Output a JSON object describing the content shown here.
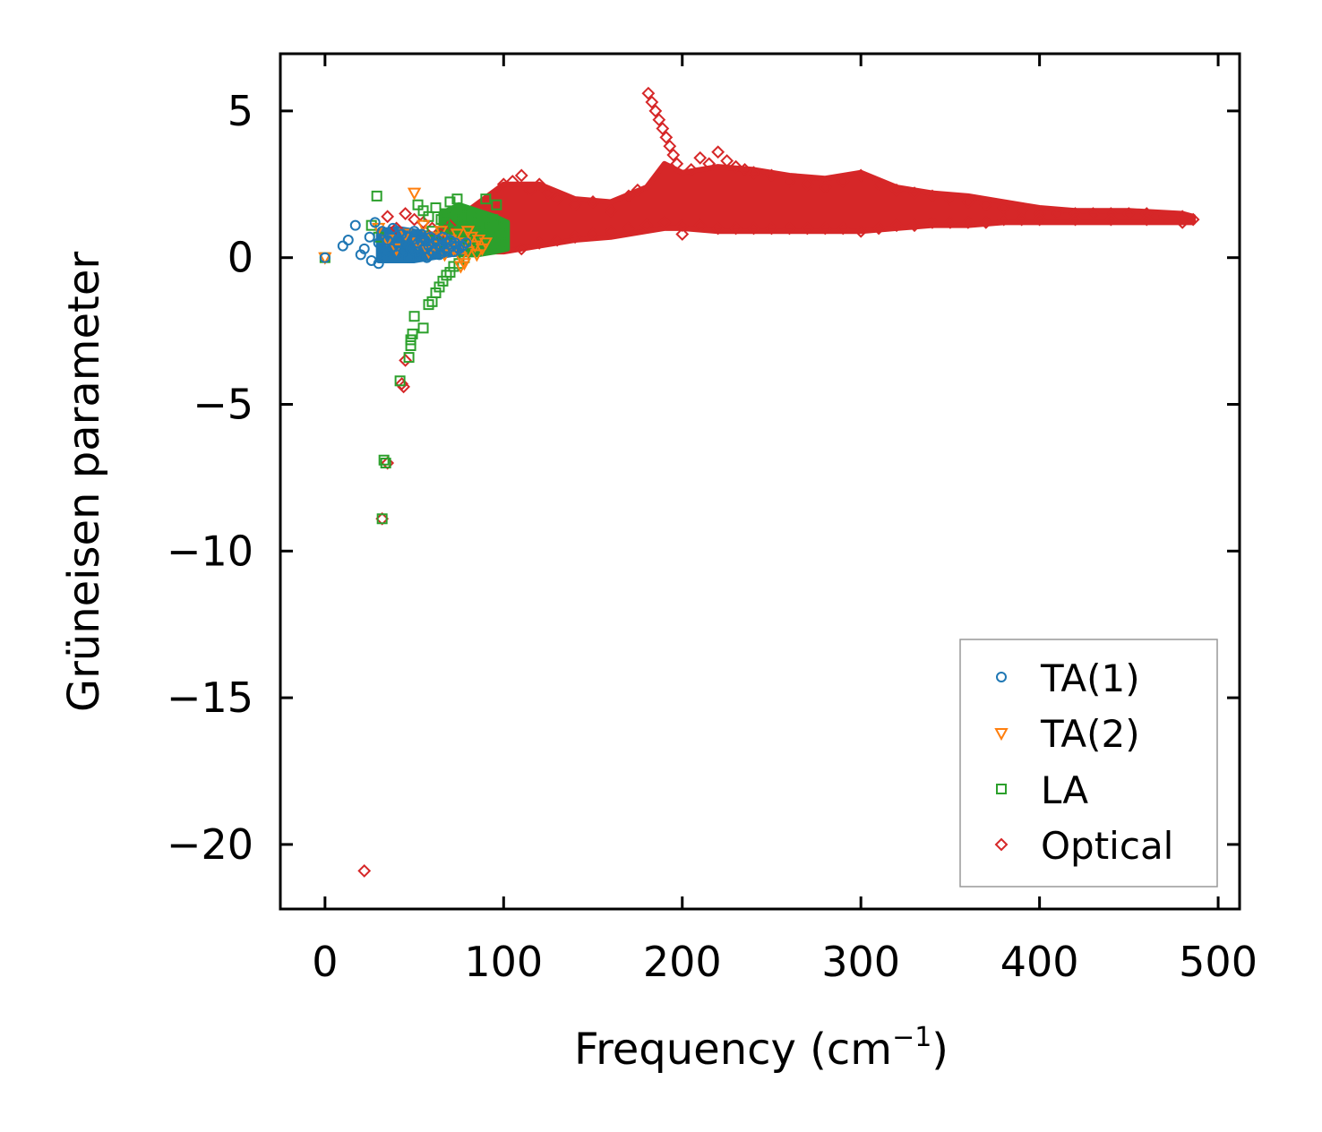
{
  "chart_data": {
    "type": "scatter",
    "title": "",
    "xlabel": "Frequency (cm",
    "xlabel_sup": "−1",
    "xlabel_end": ")",
    "ylabel": "Grüneisen parameter",
    "xlim": [
      -25,
      512
    ],
    "ylim": [
      -22.2,
      6.95
    ],
    "xticks": [
      0,
      100,
      200,
      300,
      400,
      500
    ],
    "yticks": [
      5,
      0,
      -5,
      -10,
      -15,
      -20
    ],
    "xtick_labels": [
      "0",
      "100",
      "200",
      "300",
      "400",
      "500"
    ],
    "ytick_labels": [
      "5",
      "0",
      "−5",
      "−10",
      "−15",
      "−20"
    ],
    "grid": false,
    "legend_position": "bottom-right",
    "series": [
      {
        "name": "TA(1)",
        "marker": "circle",
        "color": "#1f77b4",
        "points": [
          [
            0,
            0
          ],
          [
            10,
            0.4
          ],
          [
            13,
            0.6
          ],
          [
            17,
            1.1
          ],
          [
            20,
            0.1
          ],
          [
            22,
            0.3
          ],
          [
            25,
            0.7
          ],
          [
            26,
            -0.1
          ],
          [
            28,
            1.2
          ],
          [
            30,
            0.5
          ],
          [
            30,
            -0.2
          ],
          [
            32,
            0.9
          ],
          [
            34,
            0.2
          ],
          [
            35,
            0.6
          ],
          [
            37,
            0.3
          ],
          [
            38,
            1.0
          ],
          [
            40,
            0.1
          ],
          [
            41,
            0.5
          ],
          [
            43,
            0.8
          ],
          [
            44,
            0.2
          ],
          [
            45,
            0.4
          ],
          [
            46,
            0.7
          ],
          [
            47,
            0.0
          ],
          [
            48,
            0.3
          ],
          [
            49,
            0.6
          ],
          [
            50,
            0.9
          ],
          [
            51,
            0.2
          ],
          [
            52,
            0.5
          ],
          [
            53,
            0.1
          ],
          [
            54,
            0.8
          ],
          [
            55,
            0.3
          ],
          [
            56,
            0.6
          ],
          [
            57,
            0.0
          ],
          [
            58,
            0.4
          ],
          [
            59,
            0.7
          ],
          [
            60,
            0.2
          ],
          [
            61,
            0.5
          ],
          [
            62,
            0.3
          ],
          [
            63,
            0.6
          ],
          [
            64,
            0.1
          ],
          [
            65,
            0.4
          ],
          [
            66,
            0.7
          ],
          [
            67,
            0.2
          ],
          [
            68,
            0.5
          ],
          [
            69,
            0.3
          ],
          [
            70,
            0.6
          ],
          [
            71,
            0.4
          ],
          [
            72,
            0.2
          ],
          [
            73,
            0.5
          ],
          [
            75,
            0.3
          ],
          [
            77,
            0.4
          ],
          [
            79,
            0.5
          ]
        ]
      },
      {
        "name": "TA(2)",
        "marker": "triangle-down",
        "color": "#ff7f0e",
        "points": [
          [
            0,
            0
          ],
          [
            30,
            1.0
          ],
          [
            35,
            0.6
          ],
          [
            40,
            0.3
          ],
          [
            45,
            0.8
          ],
          [
            50,
            2.2
          ],
          [
            52,
            0.5
          ],
          [
            55,
            1.1
          ],
          [
            58,
            0.2
          ],
          [
            60,
            0.7
          ],
          [
            62,
            0.4
          ],
          [
            65,
            0.9
          ],
          [
            67,
            0.1
          ],
          [
            70,
            0.6
          ],
          [
            72,
            0.3
          ],
          [
            74,
            0.8
          ],
          [
            76,
            0.0
          ],
          [
            78,
            0.5
          ],
          [
            80,
            0.2
          ],
          [
            82,
            0.7
          ],
          [
            84,
            0.4
          ],
          [
            86,
            0.6
          ],
          [
            88,
            0.3
          ],
          [
            90,
            0.5
          ],
          [
            78,
            -0.2
          ],
          [
            76,
            -0.3
          ],
          [
            80,
            0.9
          ],
          [
            85,
            0.1
          ]
        ]
      },
      {
        "name": "LA",
        "marker": "square",
        "color": "#2ca02c",
        "points": [
          [
            0,
            0
          ],
          [
            29,
            2.1
          ],
          [
            26,
            1.1
          ],
          [
            30,
            0.7
          ],
          [
            32,
            -8.9
          ],
          [
            33,
            -6.9
          ],
          [
            34,
            -7.0
          ],
          [
            42,
            -4.2
          ],
          [
            47,
            -3.4
          ],
          [
            48,
            -3.0
          ],
          [
            48,
            -2.8
          ],
          [
            49,
            -2.6
          ],
          [
            50,
            -2.0
          ],
          [
            55,
            -2.4
          ],
          [
            58,
            -1.6
          ],
          [
            60,
            -1.5
          ],
          [
            62,
            -1.2
          ],
          [
            64,
            -1.0
          ],
          [
            66,
            -0.8
          ],
          [
            68,
            -0.6
          ],
          [
            70,
            -0.5
          ],
          [
            72,
            -0.3
          ],
          [
            75,
            -0.2
          ],
          [
            78,
            0.0
          ],
          [
            52,
            1.8
          ],
          [
            55,
            1.6
          ],
          [
            58,
            1.4
          ],
          [
            62,
            1.7
          ],
          [
            65,
            1.3
          ],
          [
            68,
            1.5
          ],
          [
            70,
            1.9
          ],
          [
            72,
            1.2
          ],
          [
            74,
            2.0
          ],
          [
            75,
            1.6
          ],
          [
            77,
            1.4
          ],
          [
            80,
            1.1
          ],
          [
            82,
            1.5
          ],
          [
            84,
            0.9
          ],
          [
            86,
            1.2
          ],
          [
            88,
            0.8
          ],
          [
            90,
            2.0
          ],
          [
            92,
            1.0
          ],
          [
            94,
            1.3
          ],
          [
            96,
            1.8
          ],
          [
            98,
            0.7
          ],
          [
            100,
            1.1
          ],
          [
            60,
            0.9
          ],
          [
            65,
            0.5
          ],
          [
            70,
            0.8
          ],
          [
            75,
            0.6
          ],
          [
            80,
            0.4
          ],
          [
            85,
            0.7
          ],
          [
            90,
            0.3
          ],
          [
            95,
            0.6
          ],
          [
            100,
            0.5
          ]
        ]
      },
      {
        "name": "Optical",
        "marker": "diamond",
        "color": "#d62728",
        "points": [
          [
            22,
            -20.9
          ],
          [
            32,
            -8.9
          ],
          [
            35,
            -7.0
          ],
          [
            43,
            -4.3
          ],
          [
            44,
            -4.4
          ],
          [
            45,
            -3.5
          ],
          [
            35,
            1.4
          ],
          [
            40,
            1.0
          ],
          [
            45,
            1.5
          ],
          [
            50,
            1.3
          ],
          [
            55,
            1.2
          ],
          [
            60,
            1.0
          ],
          [
            65,
            0.8
          ],
          [
            70,
            1.1
          ],
          [
            100,
            2.5
          ],
          [
            105,
            2.6
          ],
          [
            110,
            2.8
          ],
          [
            115,
            2.3
          ],
          [
            120,
            2.5
          ],
          [
            125,
            2.2
          ],
          [
            130,
            2.0
          ],
          [
            140,
            1.8
          ],
          [
            150,
            1.9
          ],
          [
            160,
            1.6
          ],
          [
            170,
            2.1
          ],
          [
            175,
            2.3
          ],
          [
            181,
            5.6
          ],
          [
            183,
            5.3
          ],
          [
            185,
            5.0
          ],
          [
            187,
            4.7
          ],
          [
            189,
            4.4
          ],
          [
            191,
            4.1
          ],
          [
            193,
            3.8
          ],
          [
            195,
            3.5
          ],
          [
            197,
            3.2
          ],
          [
            200,
            0.8
          ],
          [
            205,
            3.0
          ],
          [
            210,
            3.4
          ],
          [
            215,
            3.2
          ],
          [
            220,
            3.6
          ],
          [
            225,
            3.3
          ],
          [
            230,
            3.1
          ],
          [
            235,
            3.0
          ],
          [
            240,
            2.9
          ],
          [
            250,
            2.8
          ],
          [
            260,
            2.6
          ],
          [
            270,
            2.5
          ],
          [
            280,
            2.4
          ],
          [
            290,
            2.6
          ],
          [
            300,
            2.8
          ],
          [
            310,
            2.5
          ],
          [
            320,
            2.3
          ],
          [
            330,
            2.2
          ],
          [
            340,
            2.1
          ],
          [
            350,
            2.0
          ],
          [
            360,
            1.9
          ],
          [
            370,
            1.8
          ],
          [
            380,
            1.7
          ],
          [
            390,
            1.6
          ],
          [
            400,
            1.5
          ],
          [
            410,
            1.5
          ],
          [
            420,
            1.5
          ],
          [
            430,
            1.5
          ],
          [
            440,
            1.5
          ],
          [
            450,
            1.5
          ],
          [
            460,
            1.5
          ],
          [
            470,
            1.4
          ],
          [
            480,
            1.4
          ],
          [
            486,
            1.3
          ],
          [
            110,
            0.3
          ],
          [
            120,
            0.5
          ],
          [
            130,
            0.6
          ],
          [
            140,
            0.7
          ],
          [
            150,
            0.8
          ],
          [
            160,
            0.9
          ],
          [
            170,
            1.0
          ],
          [
            180,
            1.1
          ],
          [
            190,
            1.2
          ],
          [
            200,
            1.1
          ],
          [
            210,
            1.1
          ],
          [
            220,
            1.0
          ],
          [
            230,
            1.0
          ],
          [
            240,
            1.0
          ],
          [
            250,
            1.0
          ],
          [
            260,
            1.0
          ],
          [
            270,
            1.0
          ],
          [
            280,
            1.0
          ],
          [
            290,
            1.0
          ],
          [
            300,
            0.9
          ],
          [
            310,
            1.0
          ],
          [
            320,
            1.1
          ],
          [
            330,
            1.1
          ],
          [
            340,
            1.2
          ],
          [
            350,
            1.2
          ],
          [
            360,
            1.2
          ],
          [
            370,
            1.2
          ],
          [
            380,
            1.3
          ],
          [
            390,
            1.3
          ],
          [
            400,
            1.3
          ],
          [
            420,
            1.3
          ],
          [
            440,
            1.3
          ],
          [
            460,
            1.3
          ],
          [
            480,
            1.2
          ]
        ]
      }
    ],
    "optical_band": {
      "upper": [
        [
          80,
          1.6
        ],
        [
          100,
          2.5
        ],
        [
          120,
          2.5
        ],
        [
          140,
          2.0
        ],
        [
          160,
          1.9
        ],
        [
          180,
          2.4
        ],
        [
          190,
          3.2
        ],
        [
          200,
          2.9
        ],
        [
          220,
          3.1
        ],
        [
          240,
          3.0
        ],
        [
          260,
          2.8
        ],
        [
          280,
          2.7
        ],
        [
          300,
          2.9
        ],
        [
          320,
          2.4
        ],
        [
          340,
          2.2
        ],
        [
          360,
          2.1
        ],
        [
          380,
          1.9
        ],
        [
          400,
          1.7
        ],
        [
          420,
          1.6
        ],
        [
          450,
          1.6
        ],
        [
          480,
          1.5
        ],
        [
          486,
          1.4
        ]
      ],
      "lower": [
        [
          80,
          0.2
        ],
        [
          100,
          0.2
        ],
        [
          120,
          0.4
        ],
        [
          140,
          0.6
        ],
        [
          160,
          0.7
        ],
        [
          180,
          0.9
        ],
        [
          190,
          1.0
        ],
        [
          200,
          1.0
        ],
        [
          220,
          0.9
        ],
        [
          240,
          0.9
        ],
        [
          260,
          0.9
        ],
        [
          280,
          0.9
        ],
        [
          300,
          0.9
        ],
        [
          320,
          1.0
        ],
        [
          340,
          1.1
        ],
        [
          360,
          1.1
        ],
        [
          380,
          1.2
        ],
        [
          400,
          1.2
        ],
        [
          420,
          1.2
        ],
        [
          450,
          1.2
        ],
        [
          480,
          1.2
        ],
        [
          486,
          1.2
        ]
      ]
    },
    "la_band": {
      "upper": [
        [
          65,
          1.5
        ],
        [
          75,
          1.8
        ],
        [
          85,
          1.6
        ],
        [
          95,
          1.4
        ],
        [
          102,
          1.2
        ]
      ],
      "lower": [
        [
          65,
          0.2
        ],
        [
          75,
          0.1
        ],
        [
          85,
          0.1
        ],
        [
          95,
          0.2
        ],
        [
          102,
          0.3
        ]
      ]
    },
    "ta1_band": {
      "upper": [
        [
          30,
          0.9
        ],
        [
          40,
          1.0
        ],
        [
          50,
          0.9
        ],
        [
          60,
          0.8
        ],
        [
          70,
          0.7
        ],
        [
          78,
          0.5
        ]
      ],
      "lower": [
        [
          30,
          -0.1
        ],
        [
          40,
          -0.1
        ],
        [
          50,
          -0.1
        ],
        [
          60,
          0.0
        ],
        [
          70,
          0.1
        ],
        [
          78,
          0.2
        ]
      ]
    }
  }
}
